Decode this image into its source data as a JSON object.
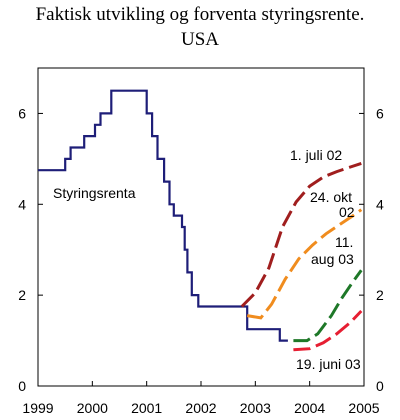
{
  "chart_data": {
    "type": "line",
    "title": "Faktisk utvikling og forventa styringsrente.",
    "subtitle": "USA",
    "xlim": [
      1999,
      2005
    ],
    "ylim": [
      0,
      7
    ],
    "x_ticks": [
      "1999",
      "2000",
      "2001",
      "2002",
      "2003",
      "2004",
      "2005"
    ],
    "y_ticks_left": [
      "0",
      "2",
      "4",
      "6"
    ],
    "y_ticks_right": [
      "0",
      "2",
      "4",
      "6"
    ],
    "grid": false,
    "colors": {
      "actual": "#1e1e78",
      "jul02": "#a01e1e",
      "okt02": "#f08c1e",
      "aug03": "#1e7828",
      "jun03": "#e61e32"
    },
    "series": [
      {
        "name": "Styringsrenta",
        "style": "step",
        "points": [
          [
            1999.0,
            4.75
          ],
          [
            1999.5,
            4.75
          ],
          [
            1999.5,
            5.0
          ],
          [
            1999.6,
            5.0
          ],
          [
            1999.6,
            5.25
          ],
          [
            1999.85,
            5.25
          ],
          [
            1999.85,
            5.5
          ],
          [
            2000.05,
            5.5
          ],
          [
            2000.05,
            5.75
          ],
          [
            2000.15,
            5.75
          ],
          [
            2000.15,
            6.0
          ],
          [
            2000.35,
            6.0
          ],
          [
            2000.35,
            6.5
          ],
          [
            2001.0,
            6.5
          ],
          [
            2001.0,
            6.0
          ],
          [
            2001.1,
            6.0
          ],
          [
            2001.1,
            5.5
          ],
          [
            2001.2,
            5.5
          ],
          [
            2001.2,
            5.0
          ],
          [
            2001.32,
            5.0
          ],
          [
            2001.32,
            4.5
          ],
          [
            2001.42,
            4.5
          ],
          [
            2001.42,
            4.0
          ],
          [
            2001.5,
            4.0
          ],
          [
            2001.5,
            3.75
          ],
          [
            2001.65,
            3.75
          ],
          [
            2001.65,
            3.5
          ],
          [
            2001.7,
            3.5
          ],
          [
            2001.7,
            3.0
          ],
          [
            2001.75,
            3.0
          ],
          [
            2001.75,
            2.5
          ],
          [
            2001.83,
            2.5
          ],
          [
            2001.83,
            2.0
          ],
          [
            2001.95,
            2.0
          ],
          [
            2001.95,
            1.75
          ],
          [
            2002.85,
            1.75
          ],
          [
            2002.85,
            1.25
          ],
          [
            2003.45,
            1.25
          ],
          [
            2003.45,
            1.0
          ],
          [
            2003.6,
            1.0
          ]
        ]
      },
      {
        "name": "1. juli 02",
        "style": "dashed",
        "points": [
          [
            2002.75,
            1.75
          ],
          [
            2003.0,
            2.05
          ],
          [
            2003.25,
            2.6
          ],
          [
            2003.5,
            3.5
          ],
          [
            2003.75,
            4.05
          ],
          [
            2004.0,
            4.4
          ],
          [
            2004.25,
            4.6
          ],
          [
            2004.5,
            4.72
          ],
          [
            2004.75,
            4.82
          ],
          [
            2004.95,
            4.9
          ]
        ]
      },
      {
        "name": "24. okt 02",
        "style": "dashed",
        "points": [
          [
            2002.85,
            1.55
          ],
          [
            2003.1,
            1.5
          ],
          [
            2003.3,
            1.8
          ],
          [
            2003.55,
            2.35
          ],
          [
            2003.8,
            2.8
          ],
          [
            2004.05,
            3.1
          ],
          [
            2004.3,
            3.35
          ],
          [
            2004.55,
            3.55
          ],
          [
            2004.8,
            3.75
          ],
          [
            2004.95,
            3.88
          ]
        ]
      },
      {
        "name": "11. aug 03",
        "style": "dashed",
        "points": [
          [
            2003.7,
            1.0
          ],
          [
            2003.95,
            1.0
          ],
          [
            2004.15,
            1.15
          ],
          [
            2004.4,
            1.55
          ],
          [
            2004.6,
            1.95
          ],
          [
            2004.8,
            2.3
          ],
          [
            2004.95,
            2.55
          ]
        ]
      },
      {
        "name": "19. juni 03",
        "style": "dashed",
        "points": [
          [
            2003.7,
            0.8
          ],
          [
            2004.0,
            0.82
          ],
          [
            2004.25,
            0.95
          ],
          [
            2004.5,
            1.15
          ],
          [
            2004.75,
            1.4
          ],
          [
            2004.95,
            1.65
          ]
        ]
      }
    ],
    "annotations": {
      "actual": "Styringsrenta",
      "jul02": "1. juli 02",
      "okt02_a": "24. okt",
      "okt02_b": "02",
      "aug03_a": "11.",
      "aug03_b": "aug 03",
      "jun03": "19. juni 03"
    }
  }
}
